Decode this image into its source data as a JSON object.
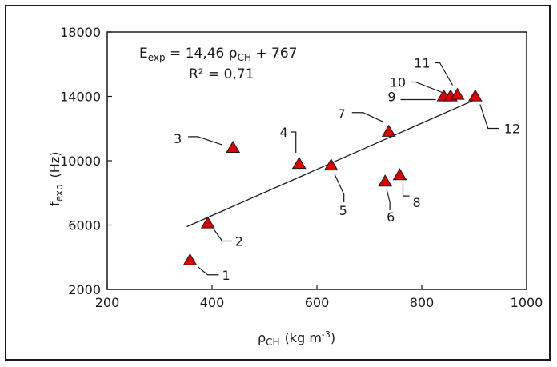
{
  "chart_data": {
    "type": "scatter",
    "xlabel": {
      "main": "ρ",
      "sub": "CH",
      "units": "(kg m",
      "sup": "-3",
      "close": ")"
    },
    "ylabel": {
      "main": "f",
      "sub": "exp",
      "units": "(Hz)"
    },
    "xlim": [
      200,
      1000
    ],
    "ylim": [
      2000,
      18000
    ],
    "x_ticks": [
      "200",
      "400",
      "600",
      "800",
      "1000"
    ],
    "y_ticks": [
      "2000",
      "6000",
      "10000",
      "14000",
      "18000"
    ],
    "grid": false,
    "legend": "none",
    "marker": {
      "shape": "triangle",
      "color": "#e00000"
    },
    "points": [
      {
        "label": "1",
        "x": 358,
        "y": 3800
      },
      {
        "label": "2",
        "x": 392,
        "y": 6100
      },
      {
        "label": "3",
        "x": 440,
        "y": 10800
      },
      {
        "label": "4",
        "x": 566,
        "y": 9800
      },
      {
        "label": "5",
        "x": 627,
        "y": 9700
      },
      {
        "label": "6",
        "x": 730,
        "y": 8700
      },
      {
        "label": "7",
        "x": 737,
        "y": 11800
      },
      {
        "label": "8",
        "x": 758,
        "y": 9100
      },
      {
        "label": "9",
        "x": 842,
        "y": 14000
      },
      {
        "label": "10",
        "x": 855,
        "y": 14000
      },
      {
        "label": "11",
        "x": 868,
        "y": 14100
      },
      {
        "label": "12",
        "x": 902,
        "y": 14000
      }
    ],
    "fit_line": {
      "x": [
        352,
        902
      ],
      "y": [
        5900,
        13800
      ]
    },
    "annotation": {
      "eq": {
        "lhs": "E",
        "lhs_sub": "exp",
        "mid": " = 14,46 ρ",
        "mid_sub": "CH",
        "rhs": " + 767"
      },
      "r2": "R² = 0,71"
    }
  }
}
